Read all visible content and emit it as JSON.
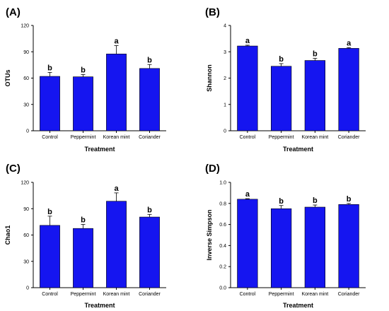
{
  "colors": {
    "bar_fill": "#1515f0",
    "bar_stroke": "#000000",
    "axis": "#000000",
    "background": "#ffffff"
  },
  "chart_data": [
    {
      "type": "bar",
      "panel_label": "(A)",
      "categories": [
        "Control",
        "Peppermint",
        "Korean mint",
        "Coriander"
      ],
      "values": [
        62,
        61.5,
        87.5,
        71
      ],
      "errors": [
        4.5,
        2.5,
        9.5,
        4.5
      ],
      "significance": [
        "b",
        "b",
        "a",
        "b"
      ],
      "title": "",
      "xlabel": "Treatment",
      "ylabel": "OTUs",
      "ylim": [
        0,
        120
      ],
      "yticks": [
        "0",
        "30",
        "60",
        "90",
        "120"
      ],
      "grid": false,
      "legend": "none"
    },
    {
      "type": "bar",
      "panel_label": "(B)",
      "categories": [
        "Control",
        "Peppermint",
        "Korean mint",
        "Coriander"
      ],
      "values": [
        3.22,
        2.45,
        2.67,
        3.13
      ],
      "errors": [
        0.03,
        0.1,
        0.08,
        0.03
      ],
      "significance": [
        "a",
        "b",
        "b",
        "a"
      ],
      "title": "",
      "xlabel": "Treatment",
      "ylabel": "Shannon",
      "ylim": [
        0,
        4
      ],
      "yticks": [
        "0",
        "1",
        "2",
        "3",
        "4"
      ],
      "grid": false,
      "legend": "none"
    },
    {
      "type": "bar",
      "panel_label": "(C)",
      "categories": [
        "Control",
        "Peppermint",
        "Korean mint",
        "Coriander"
      ],
      "values": [
        71,
        67.5,
        98.5,
        80.5
      ],
      "errors": [
        10.5,
        4.5,
        9.5,
        3
      ],
      "significance": [
        "b",
        "b",
        "a",
        "b"
      ],
      "title": "",
      "xlabel": "Treatment",
      "ylabel": "Chao1",
      "ylim": [
        0,
        120
      ],
      "yticks": [
        "0",
        "30",
        "60",
        "90",
        "120"
      ],
      "grid": false,
      "legend": "none"
    },
    {
      "type": "bar",
      "panel_label": "(D)",
      "categories": [
        "Control",
        "Peppermint",
        "Korean mint",
        "Coriander"
      ],
      "values": [
        0.84,
        0.75,
        0.765,
        0.79
      ],
      "errors": [
        0.005,
        0.03,
        0.02,
        0.01
      ],
      "significance": [
        "a",
        "b",
        "b",
        "b"
      ],
      "title": "",
      "xlabel": "Treatment",
      "ylabel": "Inverse Simpson",
      "ylim": [
        0,
        1.0
      ],
      "yticks": [
        "0.0",
        "0.2",
        "0.4",
        "0.6",
        "0.8",
        "1.0"
      ],
      "grid": false,
      "legend": "none"
    }
  ]
}
